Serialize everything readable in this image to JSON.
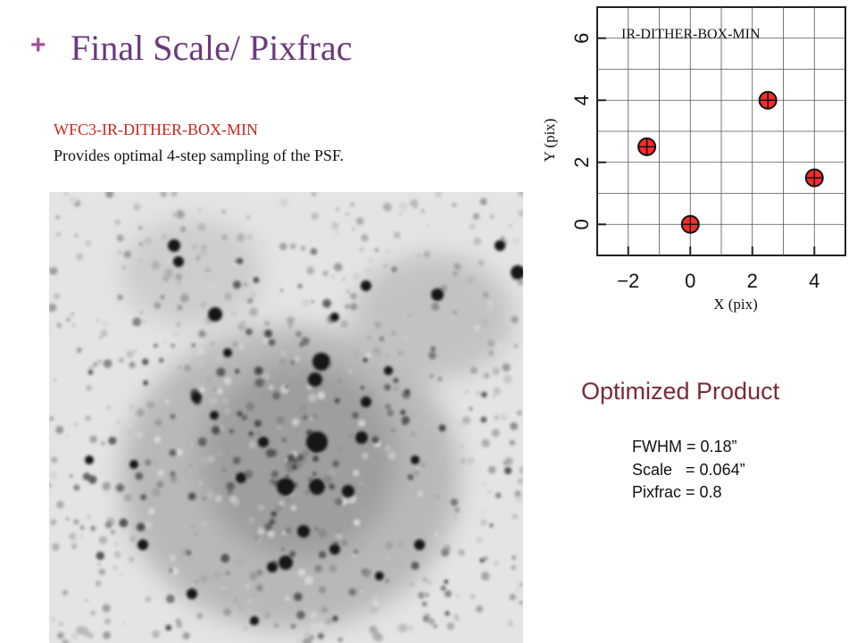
{
  "slide": {
    "bullet": "+",
    "title": "Final Scale/ Pixfrac",
    "subtitle_red": "WFC3-IR-DITHER-BOX-MIN",
    "subtitle_desc": "Provides optimal 4-step sampling of the PSF."
  },
  "image": {
    "kind": "grayscale astronomical star-field image (inverted)"
  },
  "plot": {
    "title": "IR-DITHER-BOX-MIN",
    "xlabel": "X (pix)",
    "ylabel": "Y (pix)",
    "xlim": [
      -3,
      5
    ],
    "ylim": [
      -1,
      7
    ],
    "xticks": [
      "−2",
      "0",
      "2",
      "4"
    ],
    "yticks": [
      "0",
      "2",
      "4",
      "6"
    ],
    "points": [
      {
        "x": -1.4,
        "y": 2.5
      },
      {
        "x": 0,
        "y": 0
      },
      {
        "x": 2.5,
        "y": 4
      },
      {
        "x": 4,
        "y": 1.5
      }
    ],
    "marker_color": "#ff2a2a"
  },
  "product": {
    "heading": "Optimized Product",
    "lines": [
      "FWHM = 0.18”",
      "Scale   = 0.064”",
      "Pixfrac = 0.8"
    ]
  }
}
